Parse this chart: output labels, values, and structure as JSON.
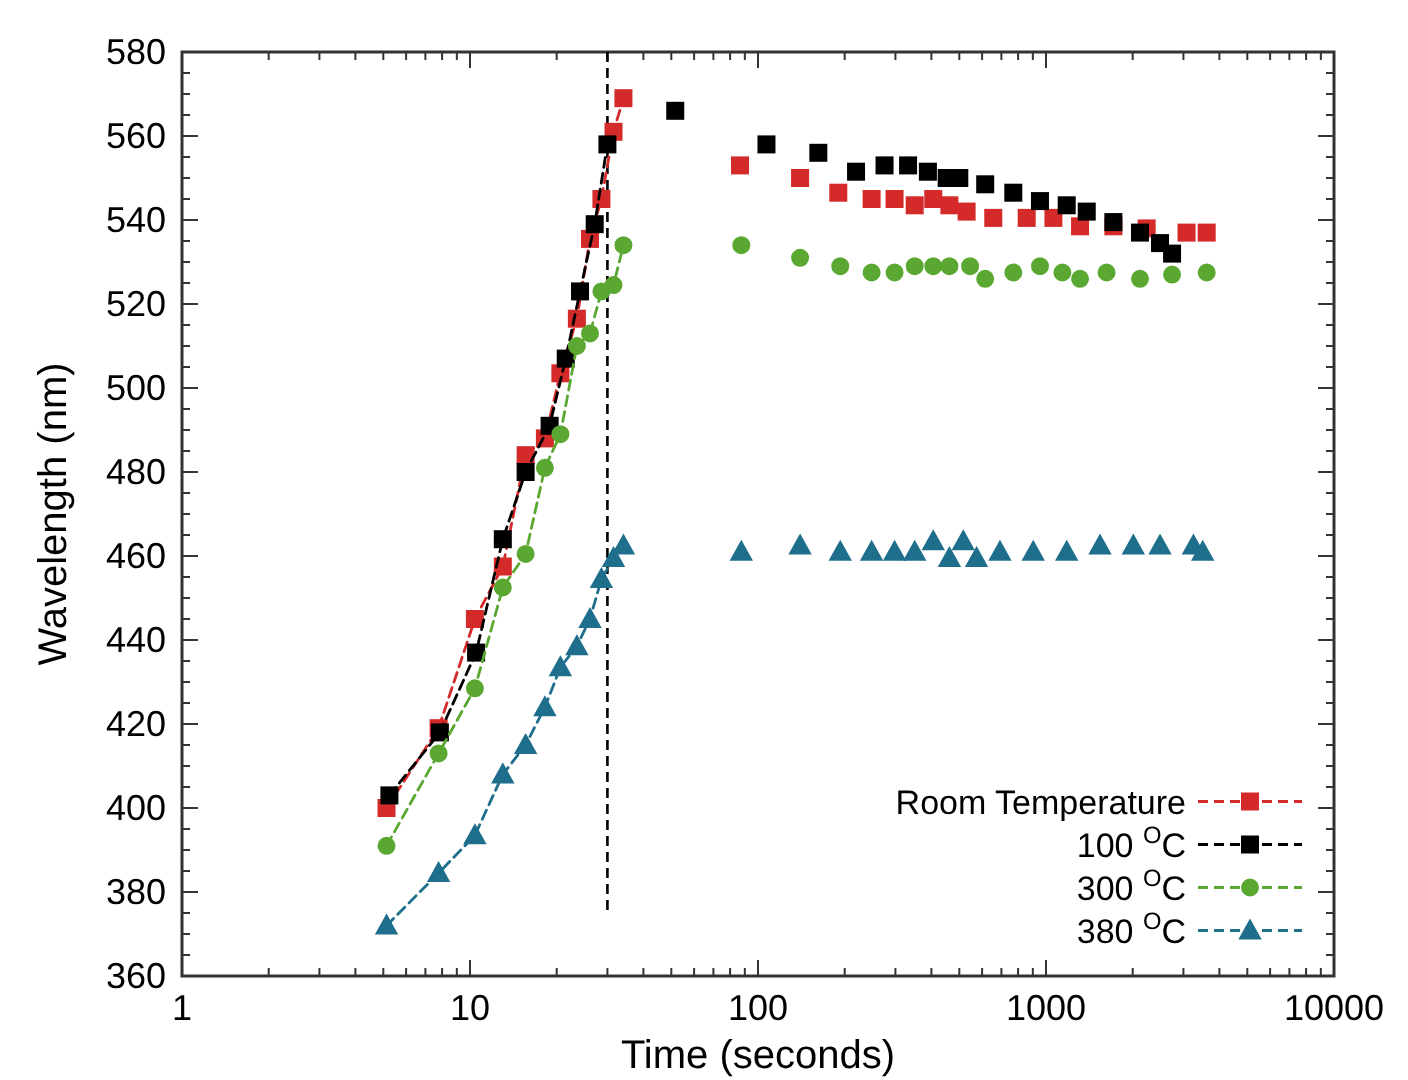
{
  "chart_data": {
    "type": "line",
    "xlabel": "Time (seconds)",
    "ylabel": "Wavelength (nm)",
    "log": "x",
    "xlim": [
      1,
      10000
    ],
    "xticks": [
      1,
      10,
      100,
      1000,
      10000
    ],
    "ylim": [
      360,
      580
    ],
    "yticks": [
      360,
      380,
      400,
      420,
      440,
      460,
      480,
      500,
      520,
      540,
      560,
      580
    ],
    "grid": false,
    "legend": "bottom right",
    "line_style": "dashed",
    "ref_lines": [
      {
        "axis": "x",
        "value": 30,
        "color": "#000000",
        "line_style": "dashed"
      }
    ],
    "series": [
      {
        "name": "Room Temperature",
        "color": "#d42a2a",
        "marker": "square",
        "x": [
          5.13,
          7.78,
          10.4,
          13.0,
          15.6,
          18.2,
          20.6,
          23.5,
          26.1,
          28.6,
          31.5,
          34.1
        ],
        "values": [
          400,
          419,
          445,
          457.5,
          484,
          488,
          503.5,
          516.5,
          535.5,
          545,
          561,
          569
        ]
      },
      {
        "name": "100 $^{O}$C",
        "color": "#000000",
        "marker": "square",
        "x": [
          5.25,
          7.86,
          10.5,
          13.0,
          15.6,
          18.9,
          21.5,
          24.1,
          27.1,
          30.0
        ],
        "values": [
          403,
          418,
          437,
          464,
          480,
          491,
          507,
          523,
          539,
          558
        ]
      },
      {
        "name": "300 $^{O}$C",
        "color": "#5aa832",
        "marker": "circle",
        "x": [
          5.13,
          7.78,
          10.4,
          13.0,
          15.6,
          18.2,
          20.6,
          23.5,
          26.1,
          28.6,
          31.5,
          34.1
        ],
        "values": [
          391,
          413,
          428.5,
          452.5,
          460.5,
          481,
          489,
          510,
          513,
          523,
          524.5,
          534
        ]
      },
      {
        "name": "380 $^{O}$C",
        "color": "#1e6e8c",
        "marker": "triangle",
        "x": [
          5.13,
          7.78,
          10.4,
          13.0,
          15.6,
          18.2,
          20.6,
          23.5,
          26.1,
          28.6,
          31.5,
          34.1
        ],
        "values": [
          372,
          384.5,
          393.5,
          408,
          415,
          424,
          433.5,
          438.5,
          445,
          454.5,
          459.5,
          462.5
        ]
      },
      {
        "type": "scatter",
        "color": "#d42a2a",
        "marker": "square",
        "x": [
          86.6,
          140,
          190,
          248,
          298,
          350,
          406,
          462,
          530,
          656,
          857,
          1061,
          1313,
          1714,
          2236,
          3076,
          3614
        ],
        "values": [
          553,
          550,
          546.5,
          545,
          545,
          543.5,
          545,
          543.5,
          542,
          540.5,
          540.5,
          540.5,
          538.5,
          538.5,
          538,
          537,
          537
        ]
      },
      {
        "type": "scatter",
        "color": "#000000",
        "marker": "square",
        "x": [
          51.6,
          107,
          162,
          219,
          275,
          332,
          389,
          452,
          500,
          615,
          770,
          953,
          1180,
          1385,
          1714,
          2120,
          2488,
          2740
        ],
        "values": [
          566,
          558,
          556,
          551.5,
          553,
          553,
          551.5,
          550,
          550,
          548.5,
          546.5,
          544.5,
          543.5,
          542,
          539.5,
          537,
          534.5,
          532
        ]
      },
      {
        "type": "scatter",
        "color": "#5aa832",
        "marker": "circle",
        "x": [
          87.5,
          140,
          193,
          248,
          298,
          350,
          406,
          462,
          545,
          615,
          770,
          953,
          1140,
          1313,
          1623,
          2120,
          2740,
          3614
        ],
        "values": [
          534,
          531,
          529,
          527.5,
          527.5,
          529,
          529,
          529,
          529,
          526,
          527.5,
          529,
          527.5,
          526,
          527.5,
          526,
          527,
          527.5
        ]
      },
      {
        "type": "scatter",
        "color": "#1e6e8c",
        "marker": "triangle",
        "x": [
          87.5,
          140,
          193,
          248,
          298,
          350,
          406,
          462,
          516,
          574,
          692,
          903,
          1180,
          1540,
          2010,
          2488,
          3250,
          3500
        ],
        "values": [
          461,
          462.5,
          461,
          461,
          461,
          461,
          463.5,
          459.5,
          463.5,
          459.5,
          461,
          461,
          461,
          462.5,
          462.5,
          462.5,
          462.5,
          461
        ]
      }
    ]
  }
}
